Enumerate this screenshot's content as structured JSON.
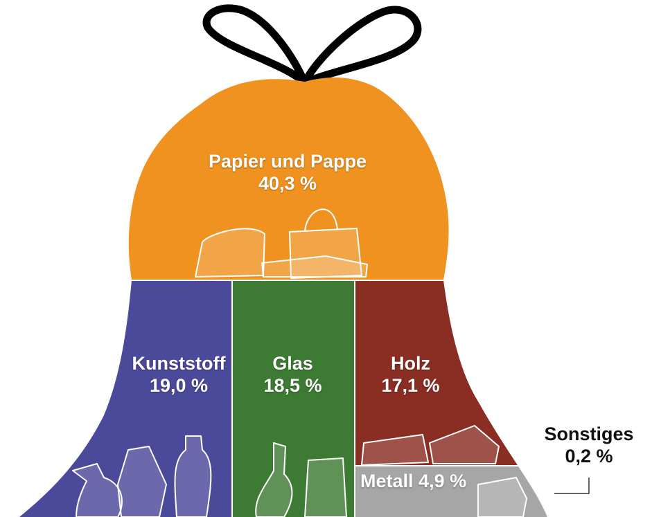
{
  "chart_data": {
    "type": "area",
    "unit": "%",
    "segments": [
      {
        "name": "Papier und Pappe",
        "label": "40,3 %",
        "value": 40.3,
        "color": "#f0921f"
      },
      {
        "name": "Kunststoff",
        "label": "19,0 %",
        "value": 19.0,
        "color": "#4b4999"
      },
      {
        "name": "Glas",
        "label": "18,5 %",
        "value": 18.5,
        "color": "#3d7a33"
      },
      {
        "name": "Holz",
        "label": "17,1 %",
        "value": 17.1,
        "color": "#8a2d22"
      },
      {
        "name": "Metall",
        "label": "4,9 %",
        "value": 4.9,
        "color": "#a6a6a6"
      },
      {
        "name": "Sonstiges",
        "label": "0,2 %",
        "value": 0.2,
        "color": "#cccccc"
      }
    ]
  }
}
